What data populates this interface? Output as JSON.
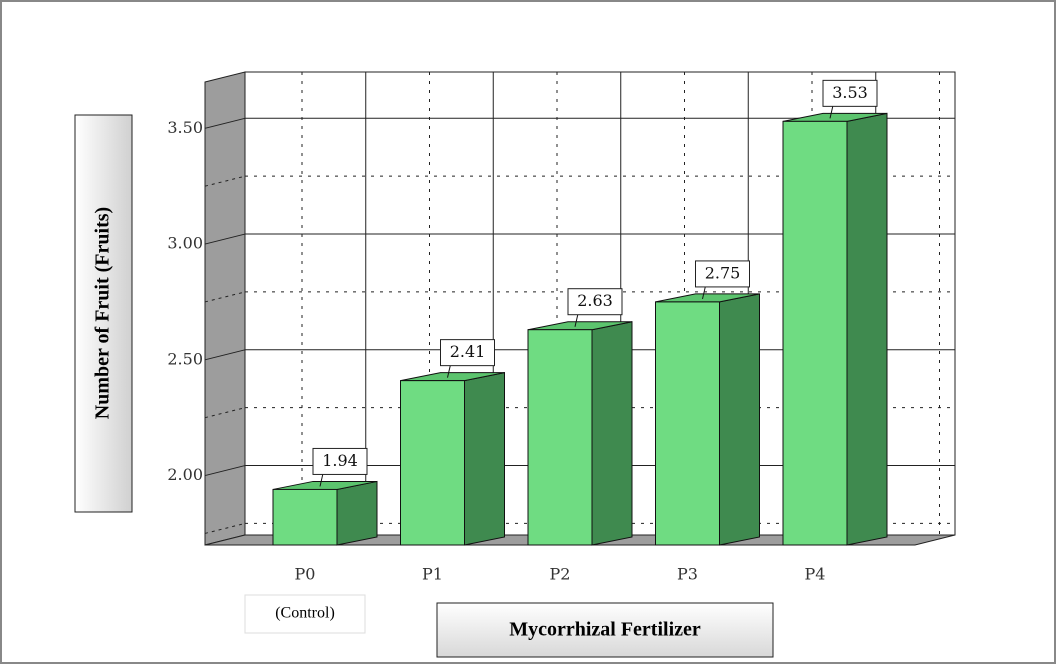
{
  "chart_data": {
    "type": "bar3d",
    "y_label": "Number of Fruit (Fruits)",
    "x_label": "Mycorrhizal Fertilizer",
    "annotation": "(Control)",
    "categories": [
      "P0",
      "P1",
      "P2",
      "P3",
      "P4"
    ],
    "values": [
      1.94,
      2.41,
      2.63,
      2.75,
      3.53
    ],
    "color": "#6fdc82",
    "ylim": [
      1.7,
      3.7
    ],
    "yticks": [
      {
        "value": 2,
        "label": "2.00"
      },
      {
        "value": 2.5,
        "label": "2.50"
      },
      {
        "value": 3,
        "label": "3.00"
      },
      {
        "value": 3.5,
        "label": "3.50"
      }
    ],
    "yminor": [
      1.75,
      2.25,
      2.75,
      3.25
    ],
    "grid": true
  }
}
